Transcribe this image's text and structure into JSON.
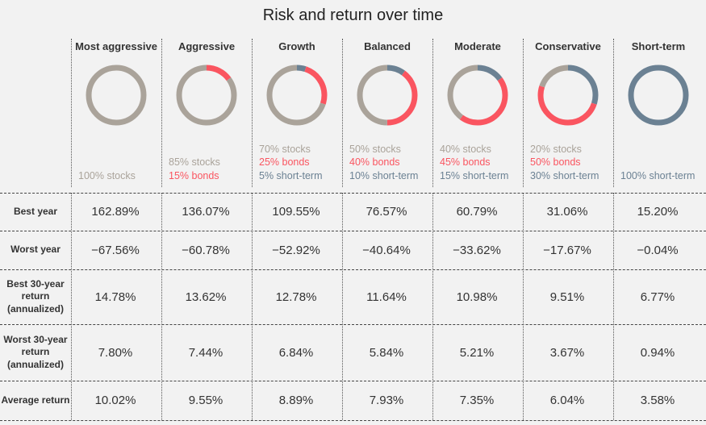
{
  "title": "Risk and return over time",
  "colors": {
    "stocks": "#aaa39a",
    "bonds": "#fa5560",
    "short_term": "#6b8193",
    "background": "#f2f2f2"
  },
  "chart_data": {
    "type": "table",
    "portfolios": [
      {
        "name": "Most aggressive",
        "stocks": 100,
        "bonds": 0,
        "short_term": 0,
        "alloc_labels": [
          {
            "text": "100% stocks",
            "kind": "stocks"
          }
        ]
      },
      {
        "name": "Aggressive",
        "stocks": 85,
        "bonds": 15,
        "short_term": 0,
        "alloc_labels": [
          {
            "text": "85% stocks",
            "kind": "stocks"
          },
          {
            "text": "15% bonds",
            "kind": "bonds"
          }
        ]
      },
      {
        "name": "Growth",
        "stocks": 70,
        "bonds": 25,
        "short_term": 5,
        "alloc_labels": [
          {
            "text": "70% stocks",
            "kind": "stocks"
          },
          {
            "text": "25% bonds",
            "kind": "bonds"
          },
          {
            "text": "5% short-term",
            "kind": "short"
          }
        ]
      },
      {
        "name": "Balanced",
        "stocks": 50,
        "bonds": 40,
        "short_term": 10,
        "alloc_labels": [
          {
            "text": "50% stocks",
            "kind": "stocks"
          },
          {
            "text": "40% bonds",
            "kind": "bonds"
          },
          {
            "text": "10% short-term",
            "kind": "short"
          }
        ]
      },
      {
        "name": "Moderate",
        "stocks": 40,
        "bonds": 45,
        "short_term": 15,
        "alloc_labels": [
          {
            "text": "40% stocks",
            "kind": "stocks"
          },
          {
            "text": "45% bonds",
            "kind": "bonds"
          },
          {
            "text": "15% short-term",
            "kind": "short"
          }
        ]
      },
      {
        "name": "Conservative",
        "stocks": 20,
        "bonds": 50,
        "short_term": 30,
        "alloc_labels": [
          {
            "text": "20% stocks",
            "kind": "stocks"
          },
          {
            "text": "50% bonds",
            "kind": "bonds"
          },
          {
            "text": "30% short-term",
            "kind": "short"
          }
        ]
      },
      {
        "name": "Short-term",
        "stocks": 0,
        "bonds": 0,
        "short_term": 100,
        "alloc_labels": [
          {
            "text": "100% short-term",
            "kind": "short"
          }
        ]
      }
    ],
    "rows": [
      {
        "label": "Best year",
        "values": [
          "162.89%",
          "136.07%",
          "109.55%",
          "76.57%",
          "60.79%",
          "31.06%",
          "15.20%"
        ]
      },
      {
        "label": "Worst year",
        "values": [
          "−67.56%",
          "−60.78%",
          "−52.92%",
          "−40.64%",
          "−33.62%",
          "−17.67%",
          "−0.04%"
        ]
      },
      {
        "label": "Best 30-year return (annualized)",
        "values": [
          "14.78%",
          "13.62%",
          "12.78%",
          "11.64%",
          "10.98%",
          "9.51%",
          "6.77%"
        ]
      },
      {
        "label": "Worst 30-year return (annualized)",
        "values": [
          "7.80%",
          "7.44%",
          "6.84%",
          "5.84%",
          "5.21%",
          "3.67%",
          "0.94%"
        ]
      },
      {
        "label": "Average return",
        "values": [
          "10.02%",
          "9.55%",
          "8.89%",
          "7.93%",
          "7.35%",
          "6.04%",
          "3.58%"
        ]
      }
    ]
  }
}
